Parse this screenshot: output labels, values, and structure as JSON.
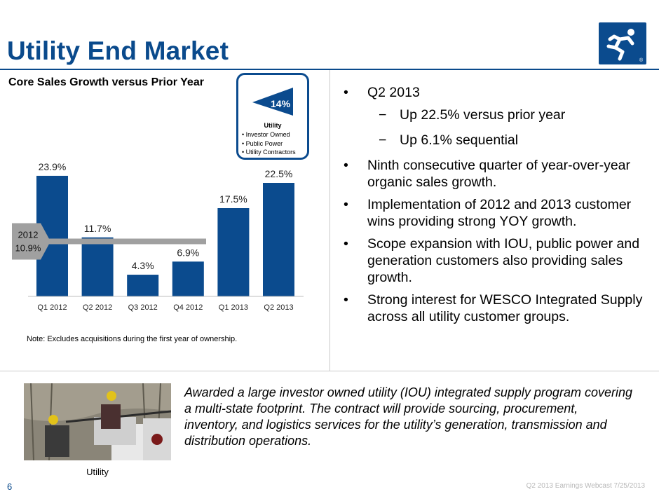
{
  "page": {
    "title": "Utility End Market",
    "page_number": "6",
    "footer": "Q2 2013 Earnings Webcast 7/25/2013"
  },
  "callout": {
    "percent": "14%",
    "heading": "Utility",
    "items": [
      "Investor Owned",
      "Public Power",
      "Utility Contractors"
    ],
    "color": "#0b4b8e"
  },
  "chart_data": {
    "type": "bar",
    "title": "Core Sales Growth versus Prior Year",
    "categories": [
      "Q1 2012",
      "Q2 2012",
      "Q3 2012",
      "Q4 2012",
      "Q1 2013",
      "Q2 2013"
    ],
    "values": [
      23.9,
      11.7,
      4.3,
      6.9,
      17.5,
      22.5
    ],
    "value_labels": [
      "23.9%",
      "11.7%",
      "4.3%",
      "6.9%",
      "17.5%",
      "22.5%"
    ],
    "ylim": [
      0,
      25
    ],
    "reference_line": {
      "value": 10.9,
      "label_year": "2012",
      "label_value": "10.9%"
    },
    "bar_color": "#0b4b8e",
    "note": "Note:  Excludes acquisitions during the first year of ownership."
  },
  "bullets": [
    {
      "level": 1,
      "text": "Q2 2013"
    },
    {
      "level": 2,
      "text": "Up 22.5% versus prior year"
    },
    {
      "level": 2,
      "text": "Up 6.1% sequential"
    },
    {
      "level": 1,
      "text": "Ninth consecutive quarter of year-over-year organic sales growth."
    },
    {
      "level": 1,
      "text": "Implementation of 2012 and 2013 customer wins providing strong YOY growth."
    },
    {
      "level": 1,
      "text": "Scope expansion with IOU, public power and generation customers also providing sales growth."
    },
    {
      "level": 1,
      "text": "Strong interest for WESCO Integrated Supply across all utility customer groups."
    }
  ],
  "award_text": "Awarded a large investor owned utility (IOU) integrated supply program covering a multi-state footprint.  The contract will provide sourcing, procurement, inventory, and logistics services for the utility’s generation, transmission and distribution operations.",
  "photo": {
    "caption": "Utility",
    "icon": "utility-workers-photo"
  },
  "logo": {
    "icon": "running-man-logo-icon",
    "mark": "®"
  }
}
